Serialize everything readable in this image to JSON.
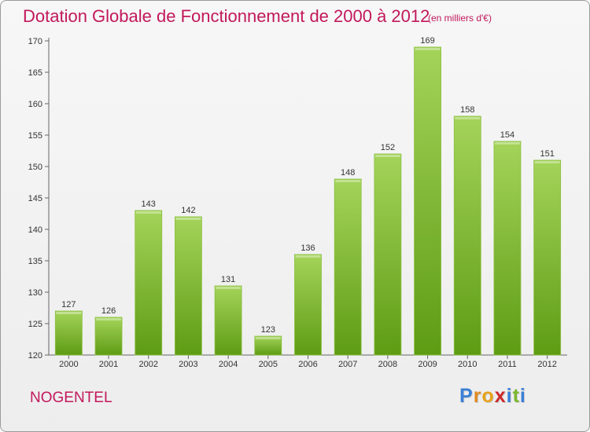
{
  "header": {
    "title": "Dotation Globale de Fonctionnement de 2000 à 2012",
    "subtitle": "(en milliers d'€)"
  },
  "footer": {
    "commune": "NOGENTEL",
    "logo_letters": [
      "P",
      "r",
      "o",
      "x",
      "i",
      "t",
      "i"
    ],
    "logo_colors": [
      "#3a7fd6",
      "#e08a1e",
      "#e8a21a",
      "#cc2a2a",
      "#3a7fd6",
      "#7ab82e",
      "#3a7fd6"
    ]
  },
  "colors": {
    "bar_light": "#a4d45a",
    "bar_dark": "#5e9c14",
    "title": "#c2185b"
  },
  "chart_data": {
    "type": "bar",
    "title": "Dotation Globale de Fonctionnement de 2000 à 2012",
    "xlabel": "",
    "ylabel": "",
    "categories": [
      "2000",
      "2001",
      "2002",
      "2003",
      "2004",
      "2005",
      "2006",
      "2007",
      "2008",
      "2009",
      "2010",
      "2011",
      "2012"
    ],
    "values": [
      127,
      126,
      143,
      142,
      131,
      123,
      136,
      148,
      152,
      169,
      158,
      154,
      151
    ],
    "ylim": [
      120,
      170
    ],
    "yticks": [
      120,
      125,
      130,
      135,
      140,
      145,
      150,
      155,
      160,
      165,
      170
    ],
    "grid": false,
    "legend": "none"
  }
}
